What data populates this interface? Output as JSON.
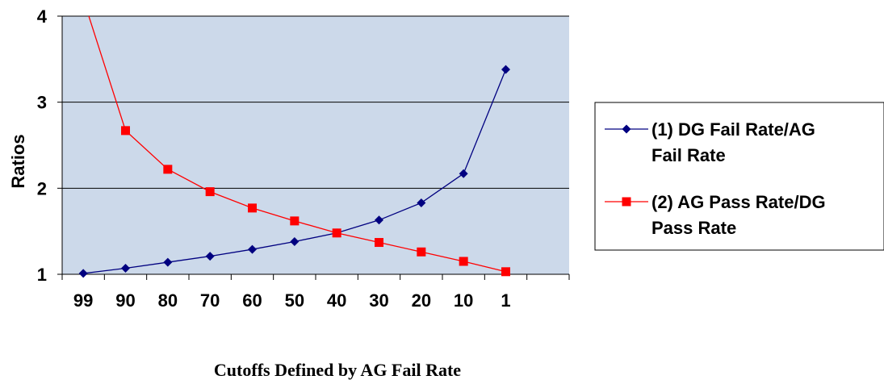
{
  "chart_data": {
    "type": "line",
    "categories": [
      "99",
      "90",
      "80",
      "70",
      "60",
      "50",
      "40",
      "30",
      "20",
      "10",
      "1"
    ],
    "series": [
      {
        "name": "(1) DG Fail Rate/AG Fail Rate",
        "name_lines": [
          "(1) DG Fail Rate/AG",
          "Fail Rate"
        ],
        "color": "#000080",
        "marker": "diamond",
        "values": [
          1.01,
          1.07,
          1.14,
          1.21,
          1.29,
          1.38,
          1.48,
          1.63,
          1.83,
          2.17,
          3.38
        ]
      },
      {
        "name": "(2) AG Pass Rate/DG Pass Rate",
        "name_lines": [
          "(2) AG Pass Rate/DG",
          "Pass Rate"
        ],
        "color": "#FF0000",
        "marker": "square",
        "values": [
          4.2,
          2.67,
          2.22,
          1.96,
          1.77,
          1.62,
          1.48,
          1.37,
          1.26,
          1.15,
          1.03
        ]
      }
    ],
    "xlabel": "Cutoffs Defined by AG Fail Rate",
    "ylabel": "Ratios",
    "ylim": [
      1,
      4
    ],
    "yticks": [
      "1",
      "2",
      "3",
      "4"
    ],
    "plot_background": "#CCD9EA",
    "grid": true,
    "legend_position": "right"
  }
}
